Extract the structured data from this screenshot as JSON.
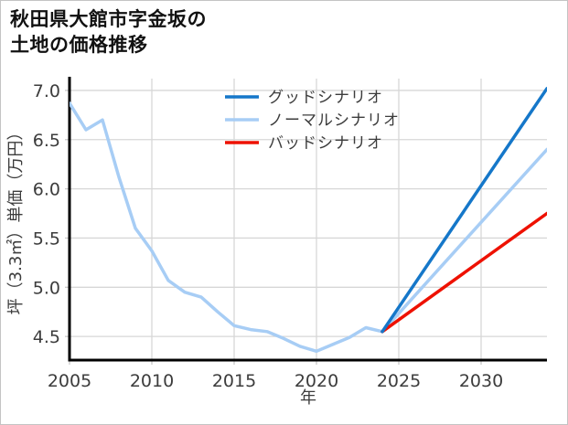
{
  "page": {
    "background": "#ffffff",
    "border_color": "#c4c4c4"
  },
  "title": {
    "line1": "秋田県大館市字金坂の",
    "line2": "土地の価格推移"
  },
  "chart_data": {
    "type": "line",
    "title": "秋田県大館市字金坂の土地の価格推移",
    "xlabel": "年",
    "ylabel": "坪（3.3㎡）単価（万円）",
    "xlim": [
      2005,
      2034
    ],
    "ylim": [
      4.26,
      7.12
    ],
    "xticks": [
      2005,
      2010,
      2015,
      2020,
      2025,
      2030
    ],
    "yticks": [
      4.5,
      5.0,
      5.5,
      6.0,
      6.5,
      7.0
    ],
    "grid": true,
    "colors": {
      "grid": "#d7d7d7",
      "tick": "#c9c9c9",
      "spine": "#000000",
      "tick_label": "#3c3c3c"
    },
    "legend": {
      "position": "upper-center-inside",
      "entries": [
        {
          "label": "グッドシナリオ",
          "slug": "good-scenario",
          "color": "#1577c9"
        },
        {
          "label": "ノーマルシナリオ",
          "slug": "normal-scenario",
          "color": "#a7cdf5"
        },
        {
          "label": "バッドシナリオ",
          "slug": "bad-scenario",
          "color": "#ee1100"
        }
      ]
    },
    "series": [
      {
        "name": "ノーマルシナリオ",
        "slug": "normal-scenario",
        "color": "#a7cdf5",
        "x": [
          2005,
          2006,
          2007,
          2008,
          2009,
          2010,
          2011,
          2012,
          2013,
          2014,
          2015,
          2016,
          2017,
          2018,
          2019,
          2020,
          2021,
          2022,
          2023,
          2024,
          2034
        ],
        "y": [
          6.87,
          6.6,
          6.7,
          6.12,
          5.6,
          5.37,
          5.07,
          4.95,
          4.9,
          4.75,
          4.61,
          4.57,
          4.55,
          4.48,
          4.4,
          4.35,
          4.42,
          4.49,
          4.59,
          4.55,
          6.4
        ]
      },
      {
        "name": "バッドシナリオ",
        "slug": "bad-scenario",
        "color": "#ee1100",
        "x": [
          2024,
          2034
        ],
        "y": [
          4.55,
          5.75
        ]
      },
      {
        "name": "グッドシナリオ",
        "slug": "good-scenario",
        "color": "#1577c9",
        "x": [
          2024,
          2034
        ],
        "y": [
          4.55,
          7.02
        ]
      }
    ]
  }
}
